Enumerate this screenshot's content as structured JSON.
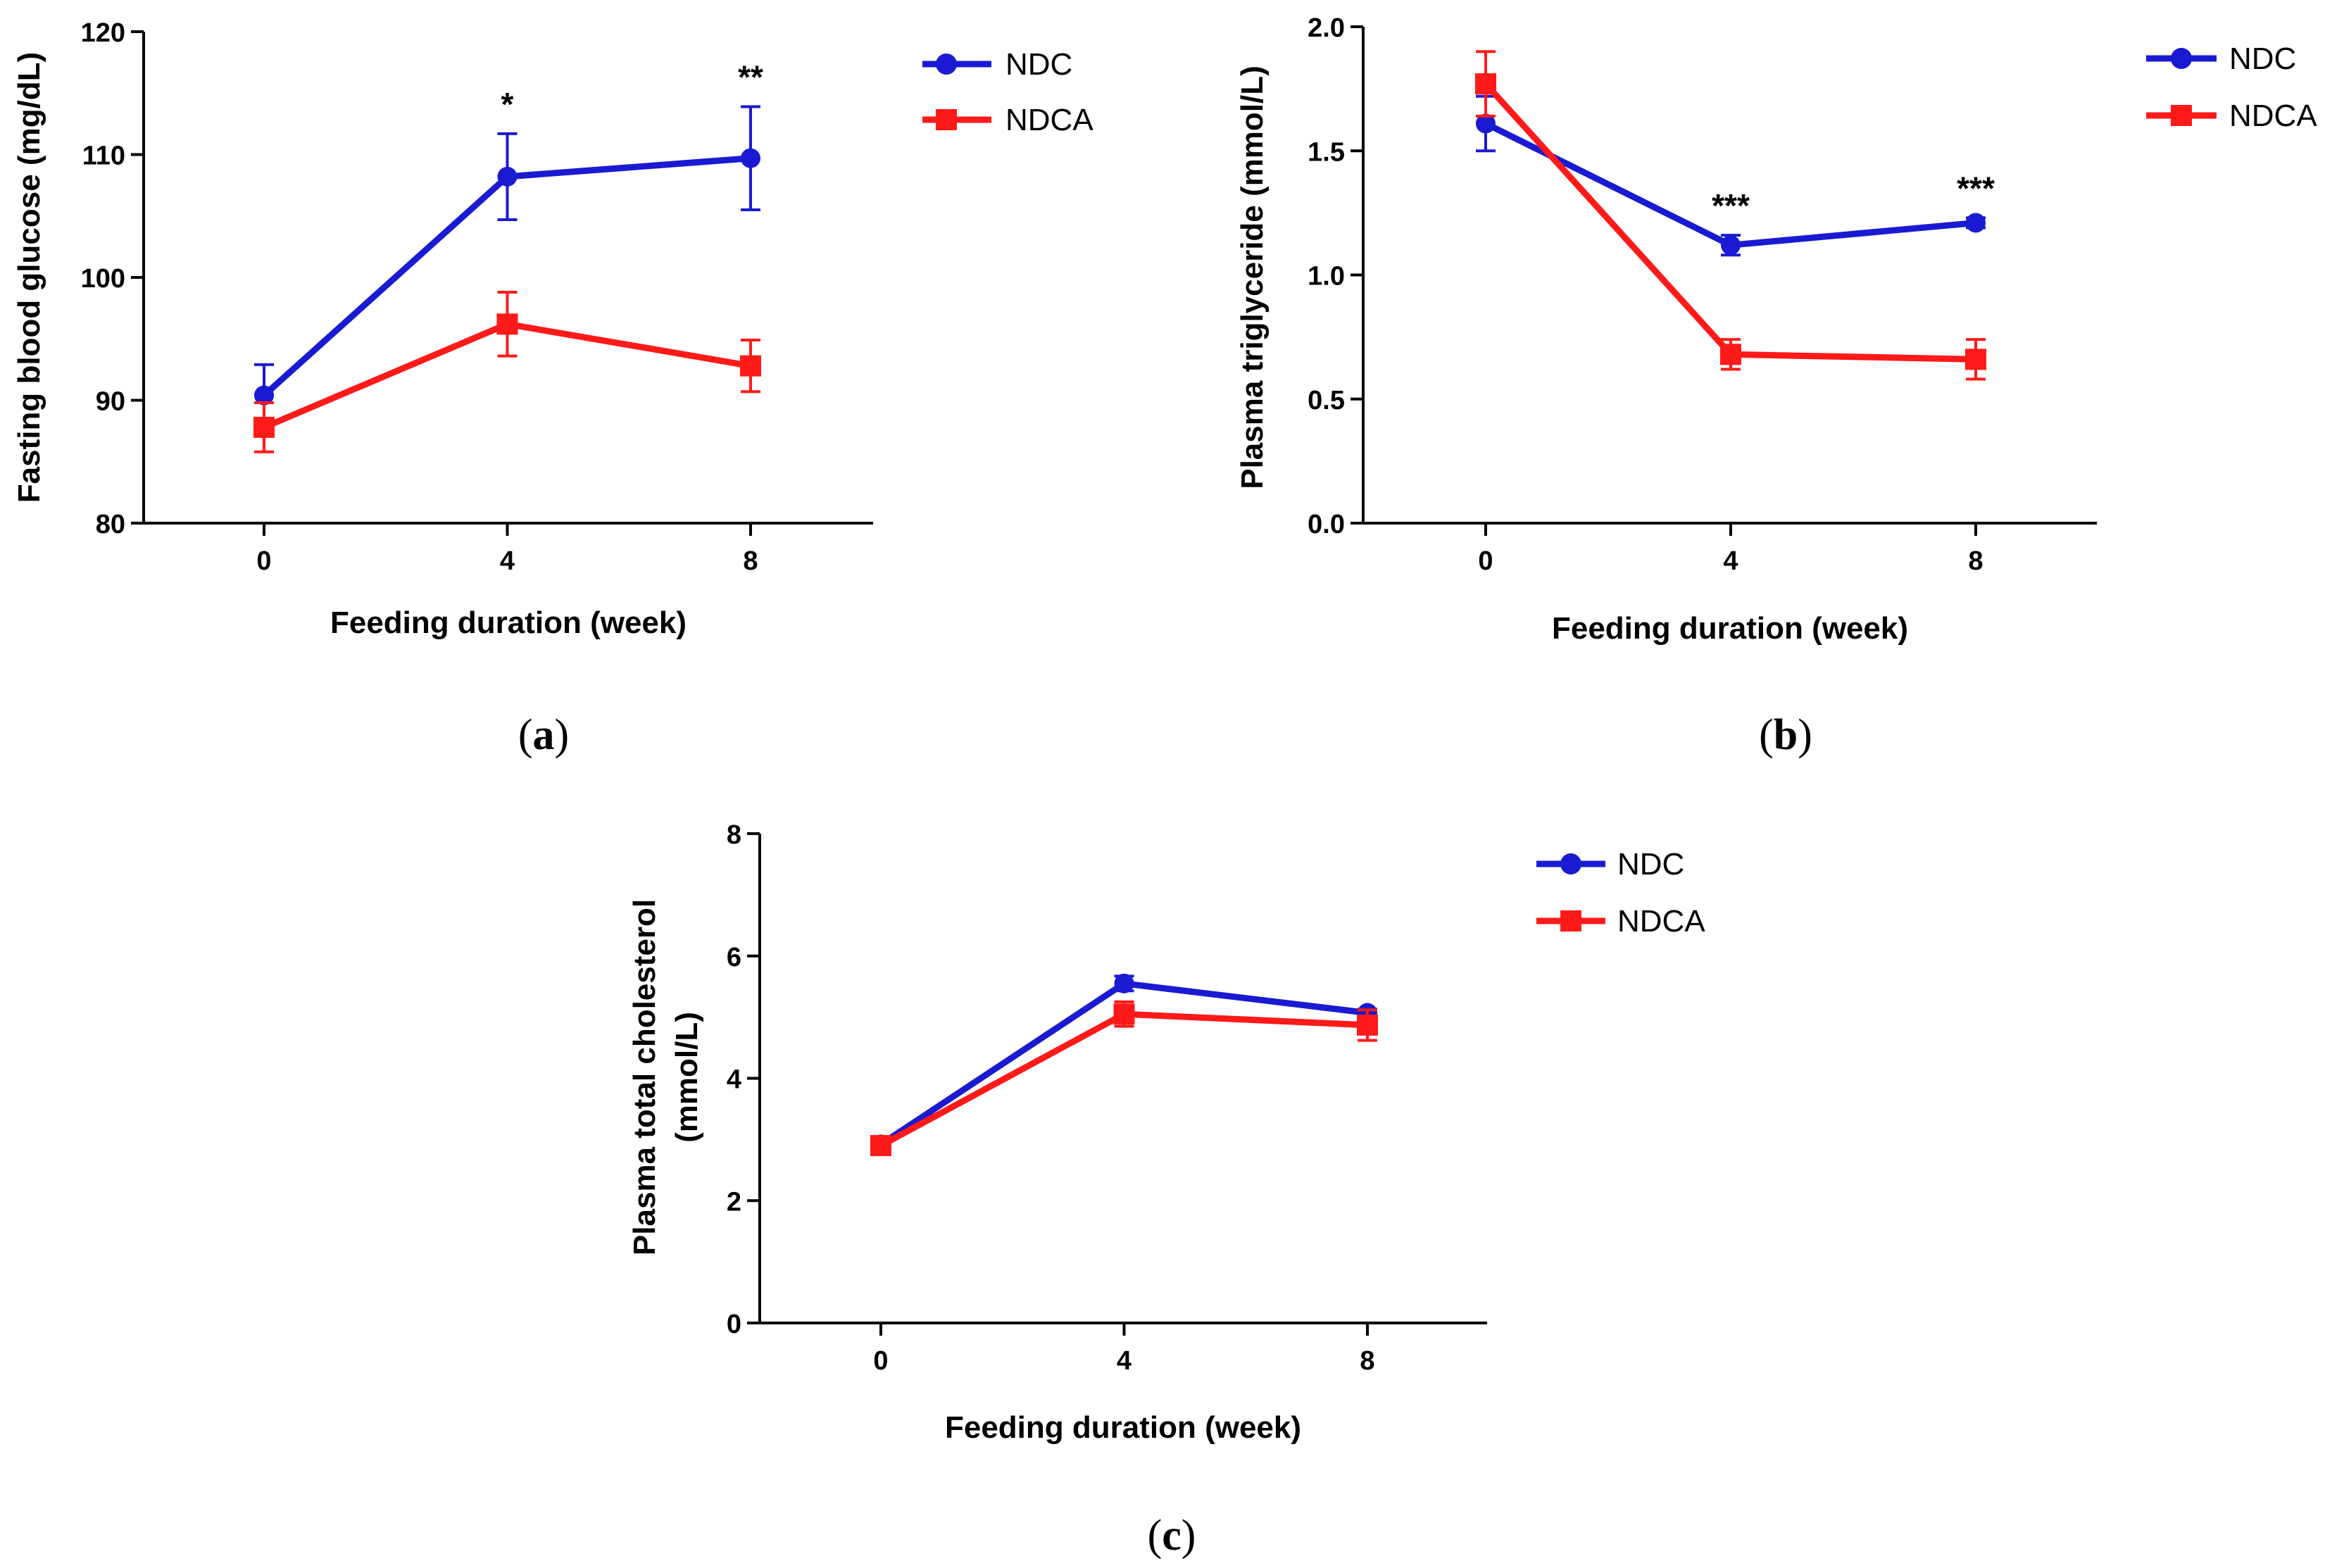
{
  "figure": {
    "panel_labels": [
      "a",
      "b",
      "c"
    ]
  },
  "chart_data": [
    {
      "id": "a",
      "type": "line",
      "panel_label": "a",
      "title": "",
      "xlabel": "Feeding duration (week)",
      "ylabel": "Fasting blood glucose (mg/dL)",
      "ylabel_lines": [
        "Fasting blood glucose (mg/dL)"
      ],
      "x": [
        0,
        4,
        8
      ],
      "x_tick_labels": [
        "0",
        "4",
        "8"
      ],
      "xlim": [
        -2,
        10
      ],
      "ylim": [
        80,
        120
      ],
      "y_ticks": [
        80,
        90,
        100,
        110,
        120
      ],
      "y_tick_labels": [
        "80",
        "90",
        "100",
        "110",
        "120"
      ],
      "grid": false,
      "legend_position": "top-right, outside plot",
      "series": [
        {
          "name": "NDC",
          "color": "#1a1ad2",
          "marker": "circle",
          "values": [
            90.4,
            108.2,
            109.7
          ],
          "errors": [
            2.5,
            3.5,
            4.2
          ]
        },
        {
          "name": "NDCA",
          "color": "#ff1a1a",
          "marker": "square",
          "values": [
            87.8,
            96.2,
            92.8
          ],
          "errors": [
            2.0,
            2.6,
            2.1
          ]
        }
      ],
      "annotations": [
        {
          "x": 4,
          "y_value": 111.7,
          "text": "*"
        },
        {
          "x": 8,
          "y_value": 113.9,
          "text": "**"
        }
      ]
    },
    {
      "id": "b",
      "type": "line",
      "panel_label": "b",
      "title": "",
      "xlabel": "Feeding duration (week)",
      "ylabel": "Plasma triglyceride (mmol/L)",
      "ylabel_lines": [
        "Plasma triglyceride (mmol/L)"
      ],
      "x": [
        0,
        4,
        8
      ],
      "x_tick_labels": [
        "0",
        "4",
        "8"
      ],
      "xlim": [
        -2,
        10
      ],
      "ylim": [
        0,
        2.0
      ],
      "y_ticks": [
        0,
        0.5,
        1.0,
        1.5,
        2.0
      ],
      "y_tick_labels": [
        "0.0",
        "0.5",
        "1.0",
        "1.5",
        "2.0"
      ],
      "grid": false,
      "legend_position": "top-right, outside plot",
      "series": [
        {
          "name": "NDC",
          "color": "#1a1ad2",
          "marker": "circle",
          "values": [
            1.61,
            1.12,
            1.21
          ],
          "errors": [
            0.11,
            0.04,
            0.02
          ]
        },
        {
          "name": "NDCA",
          "color": "#ff1a1a",
          "marker": "square",
          "values": [
            1.77,
            0.68,
            0.66
          ],
          "errors": [
            0.13,
            0.06,
            0.08
          ]
        }
      ],
      "annotations": [
        {
          "x": 4,
          "y_value": 1.16,
          "text": "***"
        },
        {
          "x": 8,
          "y_value": 1.23,
          "text": "***"
        }
      ]
    },
    {
      "id": "c",
      "type": "line",
      "panel_label": "c",
      "title": "",
      "xlabel": "Feeding duration (week)",
      "ylabel": "Plasma total cholesterol (mmol/L)",
      "ylabel_lines": [
        "Plasma total cholesterol",
        "(mmol/L)"
      ],
      "x": [
        0,
        4,
        8
      ],
      "x_tick_labels": [
        "0",
        "4",
        "8"
      ],
      "xlim": [
        -2,
        10
      ],
      "ylim": [
        0,
        8
      ],
      "y_ticks": [
        0,
        2,
        4,
        6,
        8
      ],
      "y_tick_labels": [
        "0",
        "2",
        "4",
        "6",
        "8"
      ],
      "grid": false,
      "legend_position": "top-right, outside plot",
      "series": [
        {
          "name": "NDC",
          "color": "#1a1ad2",
          "marker": "circle",
          "values": [
            2.92,
            5.55,
            5.07
          ],
          "errors": [
            0.08,
            0.12,
            0.06
          ]
        },
        {
          "name": "NDCA",
          "color": "#ff1a1a",
          "marker": "square",
          "values": [
            2.9,
            5.05,
            4.87
          ],
          "errors": [
            0.08,
            0.2,
            0.25
          ]
        }
      ],
      "annotations": []
    }
  ]
}
